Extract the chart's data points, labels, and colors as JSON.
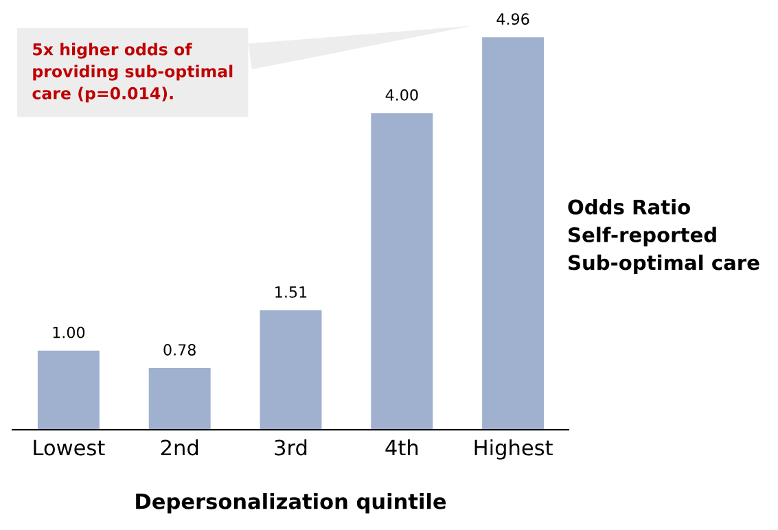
{
  "chart_data": {
    "type": "bar",
    "xlabel": "Depersonalization quintile",
    "ylabel": "Odds Ratio\nSelf-reported\nSub-optimal care",
    "categories": [
      "Lowest",
      "2nd",
      "3rd",
      "4th",
      "Highest"
    ],
    "values": [
      1.0,
      0.78,
      1.51,
      4.0,
      4.96
    ],
    "value_labels": [
      "1.00",
      "0.78",
      "1.51",
      "4.00",
      "4.96"
    ],
    "color": "#9fb1cf",
    "annotations": [
      "5x higher odds of\nproviding sub-optimal\ncare (p=0.014)."
    ],
    "grid": false,
    "legend": false
  }
}
